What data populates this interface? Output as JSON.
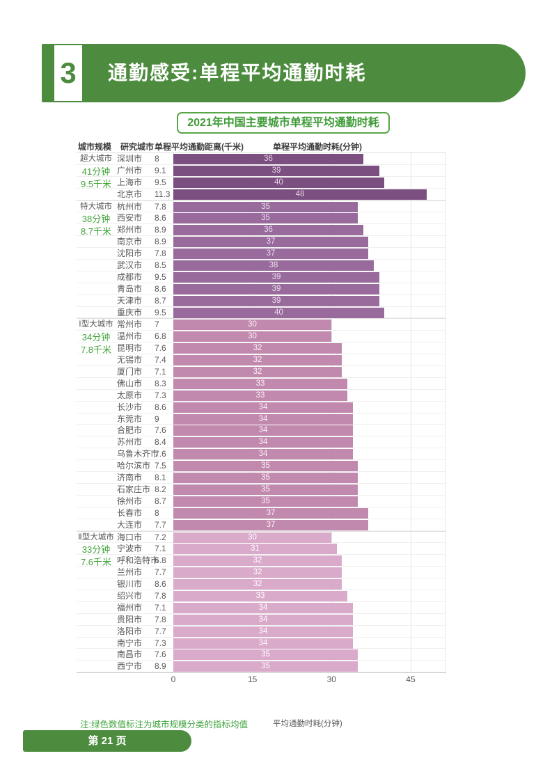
{
  "page": {
    "section_number": "3",
    "title": "通勤感受:单程平均通勤时耗",
    "note": "注:绿色数值标注为城市规模分类的指标均值",
    "page_number": "第 21 页"
  },
  "colors": {
    "header_green": "#4D8C3E",
    "accent_green": "#3FA33C",
    "subtitle_green": "#3E9B35",
    "text_gray": "#595959",
    "tier1_bar": "#7B4F7F",
    "tier2_bar": "#996B9D",
    "tier3_bar": "#C289AE",
    "tier4_bar": "#DAAACB"
  },
  "chart_data": {
    "type": "bar",
    "title": "2021年中国主要城市单程平均通勤时耗",
    "xlabel": "平均通勤时耗(分钟)",
    "x_ticks": [
      0,
      15,
      30,
      45
    ],
    "xlim": [
      0,
      51
    ],
    "grid": true,
    "columns": [
      "城市规模",
      "研究城市",
      "单程平均通勤距离(千米)",
      "单程平均通勤时耗(分钟)"
    ],
    "groups": [
      {
        "name": "超大城市",
        "avg_time": "41分钟",
        "avg_dist": "9.5千米",
        "color": "#7B4F7F",
        "label_color": "#E7D2E4",
        "cities": [
          {
            "city": "深圳市",
            "distance": "8",
            "minutes": 36
          },
          {
            "city": "广州市",
            "distance": "9.1",
            "minutes": 39
          },
          {
            "city": "上海市",
            "distance": "9.5",
            "minutes": 40
          },
          {
            "city": "北京市",
            "distance": "11.3",
            "minutes": 48
          }
        ]
      },
      {
        "name": "特大城市",
        "avg_time": "38分钟",
        "avg_dist": "8.7千米",
        "color": "#996B9D",
        "label_color": "#ECDDEE",
        "cities": [
          {
            "city": "杭州市",
            "distance": "7.8",
            "minutes": 35
          },
          {
            "city": "西安市",
            "distance": "8.6",
            "minutes": 35
          },
          {
            "city": "郑州市",
            "distance": "8.9",
            "minutes": 36
          },
          {
            "city": "南京市",
            "distance": "8.9",
            "minutes": 37
          },
          {
            "city": "沈阳市",
            "distance": "7.8",
            "minutes": 37
          },
          {
            "city": "武汉市",
            "distance": "8.5",
            "minutes": 38
          },
          {
            "city": "成都市",
            "distance": "9.5",
            "minutes": 39
          },
          {
            "city": "青岛市",
            "distance": "8.6",
            "minutes": 39
          },
          {
            "city": "天津市",
            "distance": "8.7",
            "minutes": 39
          },
          {
            "city": "重庆市",
            "distance": "9.5",
            "minutes": 40
          }
        ]
      },
      {
        "name": "Ⅰ型大城市",
        "avg_time": "34分钟",
        "avg_dist": "7.8千米",
        "color": "#C289AE",
        "label_color": "#FBF3F8",
        "cities": [
          {
            "city": "常州市",
            "distance": "7",
            "minutes": 30
          },
          {
            "city": "温州市",
            "distance": "6.8",
            "minutes": 30
          },
          {
            "city": "昆明市",
            "distance": "7.6",
            "minutes": 32
          },
          {
            "city": "无锡市",
            "distance": "7.4",
            "minutes": 32
          },
          {
            "city": "厦门市",
            "distance": "7.1",
            "minutes": 32
          },
          {
            "city": "佛山市",
            "distance": "8.3",
            "minutes": 33
          },
          {
            "city": "太原市",
            "distance": "7.3",
            "minutes": 33
          },
          {
            "city": "长沙市",
            "distance": "8.6",
            "minutes": 34
          },
          {
            "city": "东莞市",
            "distance": "9",
            "minutes": 34
          },
          {
            "city": "合肥市",
            "distance": "7.6",
            "minutes": 34
          },
          {
            "city": "苏州市",
            "distance": "8.4",
            "minutes": 34
          },
          {
            "city": "乌鲁木齐市",
            "distance": "7.6",
            "minutes": 34
          },
          {
            "city": "哈尔滨市",
            "distance": "7.5",
            "minutes": 35
          },
          {
            "city": "济南市",
            "distance": "8.1",
            "minutes": 35
          },
          {
            "city": "石家庄市",
            "distance": "8.2",
            "minutes": 35
          },
          {
            "city": "徐州市",
            "distance": "8.7",
            "minutes": 35
          },
          {
            "city": "长春市",
            "distance": "8",
            "minutes": 37
          },
          {
            "city": "大连市",
            "distance": "7.7",
            "minutes": 37
          }
        ]
      },
      {
        "name": "Ⅱ型大城市",
        "avg_time": "33分钟",
        "avg_dist": "7.6千米",
        "color": "#DAAACB",
        "label_color": "#FFFFFF",
        "cities": [
          {
            "city": "海口市",
            "distance": "7.2",
            "minutes": 30
          },
          {
            "city": "宁波市",
            "distance": "7.1",
            "minutes": 31
          },
          {
            "city": "呼和浩特市",
            "distance": "6.8",
            "minutes": 32
          },
          {
            "city": "兰州市",
            "distance": "7.7",
            "minutes": 32
          },
          {
            "city": "银川市",
            "distance": "8.6",
            "minutes": 32
          },
          {
            "city": "绍兴市",
            "distance": "7.8",
            "minutes": 33
          },
          {
            "city": "福州市",
            "distance": "7.1",
            "minutes": 34
          },
          {
            "city": "贵阳市",
            "distance": "7.8",
            "minutes": 34
          },
          {
            "city": "洛阳市",
            "distance": "7.7",
            "minutes": 34
          },
          {
            "city": "南宁市",
            "distance": "7.3",
            "minutes": 34
          },
          {
            "city": "南昌市",
            "distance": "7.6",
            "minutes": 35
          },
          {
            "city": "西宁市",
            "distance": "8.9",
            "minutes": 35
          }
        ]
      }
    ]
  }
}
